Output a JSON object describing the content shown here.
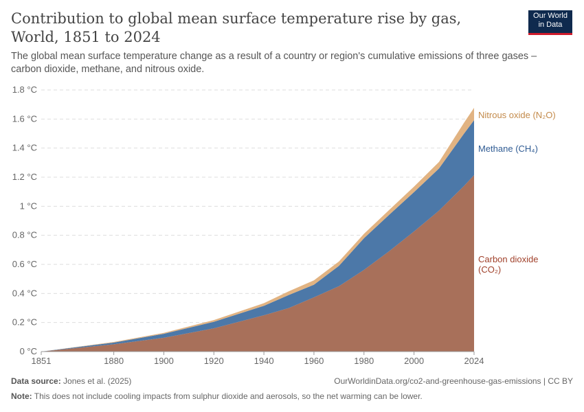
{
  "title": "Contribution to global mean surface temperature rise by gas, World, 1851 to 2024",
  "subtitle": "The global mean surface temperature change as a result of a country or region's cumulative emissions of three gases – carbon dioxide, methane, and nitrous oxide.",
  "logo": {
    "line1": "Our World",
    "line2": "in Data"
  },
  "footer": {
    "source_label": "Data source:",
    "source": " Jones et al. (2025)",
    "url": "OurWorldinData.org/co2-and-greenhouse-gas-emissions | CC BY",
    "note_label": "Note:",
    "note": " This does not include cooling impacts from sulphur dioxide and aerosols, so the net warming can be lower."
  },
  "chart_data": {
    "type": "area",
    "stacked": true,
    "x": [
      1851,
      1880,
      1900,
      1920,
      1940,
      1950,
      1960,
      1970,
      1980,
      1990,
      2000,
      2010,
      2020,
      2024
    ],
    "series": [
      {
        "name": "Carbon dioxide (CO₂)",
        "color": "#a8705a",
        "values": [
          0,
          0.05,
          0.095,
          0.16,
          0.25,
          0.3,
          0.373,
          0.45,
          0.562,
          0.69,
          0.827,
          0.97,
          1.14,
          1.214
        ]
      },
      {
        "name": "Methane (CH₄)",
        "color": "#4c78a8",
        "values": [
          0,
          0.012,
          0.027,
          0.045,
          0.065,
          0.09,
          0.087,
          0.14,
          0.218,
          0.25,
          0.27,
          0.29,
          0.36,
          0.378
        ]
      },
      {
        "name": "Nitrous oxide (N₂O)",
        "color": "#e1b382",
        "values": [
          0,
          0.004,
          0.007,
          0.012,
          0.018,
          0.025,
          0.03,
          0.03,
          0.03,
          0.033,
          0.038,
          0.045,
          0.075,
          0.085
        ]
      }
    ],
    "ylim": [
      0,
      1.8
    ],
    "yticks": [
      0,
      0.2,
      0.4,
      0.6,
      0.8,
      1,
      1.2,
      1.4,
      1.6,
      1.8
    ],
    "ytick_labels": [
      "0 °C",
      "0.2 °C",
      "0.4 °C",
      "0.6 °C",
      "0.8 °C",
      "1 °C",
      "1.2 °C",
      "1.4 °C",
      "1.6 °C",
      "1.8 °C"
    ],
    "xticks": [
      1851,
      1880,
      1900,
      1920,
      1940,
      1960,
      1980,
      2000,
      2024
    ],
    "xlim": [
      1851,
      2024
    ],
    "grid": "horizontal dashed",
    "legend": "right, inline labels",
    "label_colors": {
      "co2": "#a0402a",
      "ch4": "#2f5b93",
      "n2o": "#c38a4a"
    }
  }
}
